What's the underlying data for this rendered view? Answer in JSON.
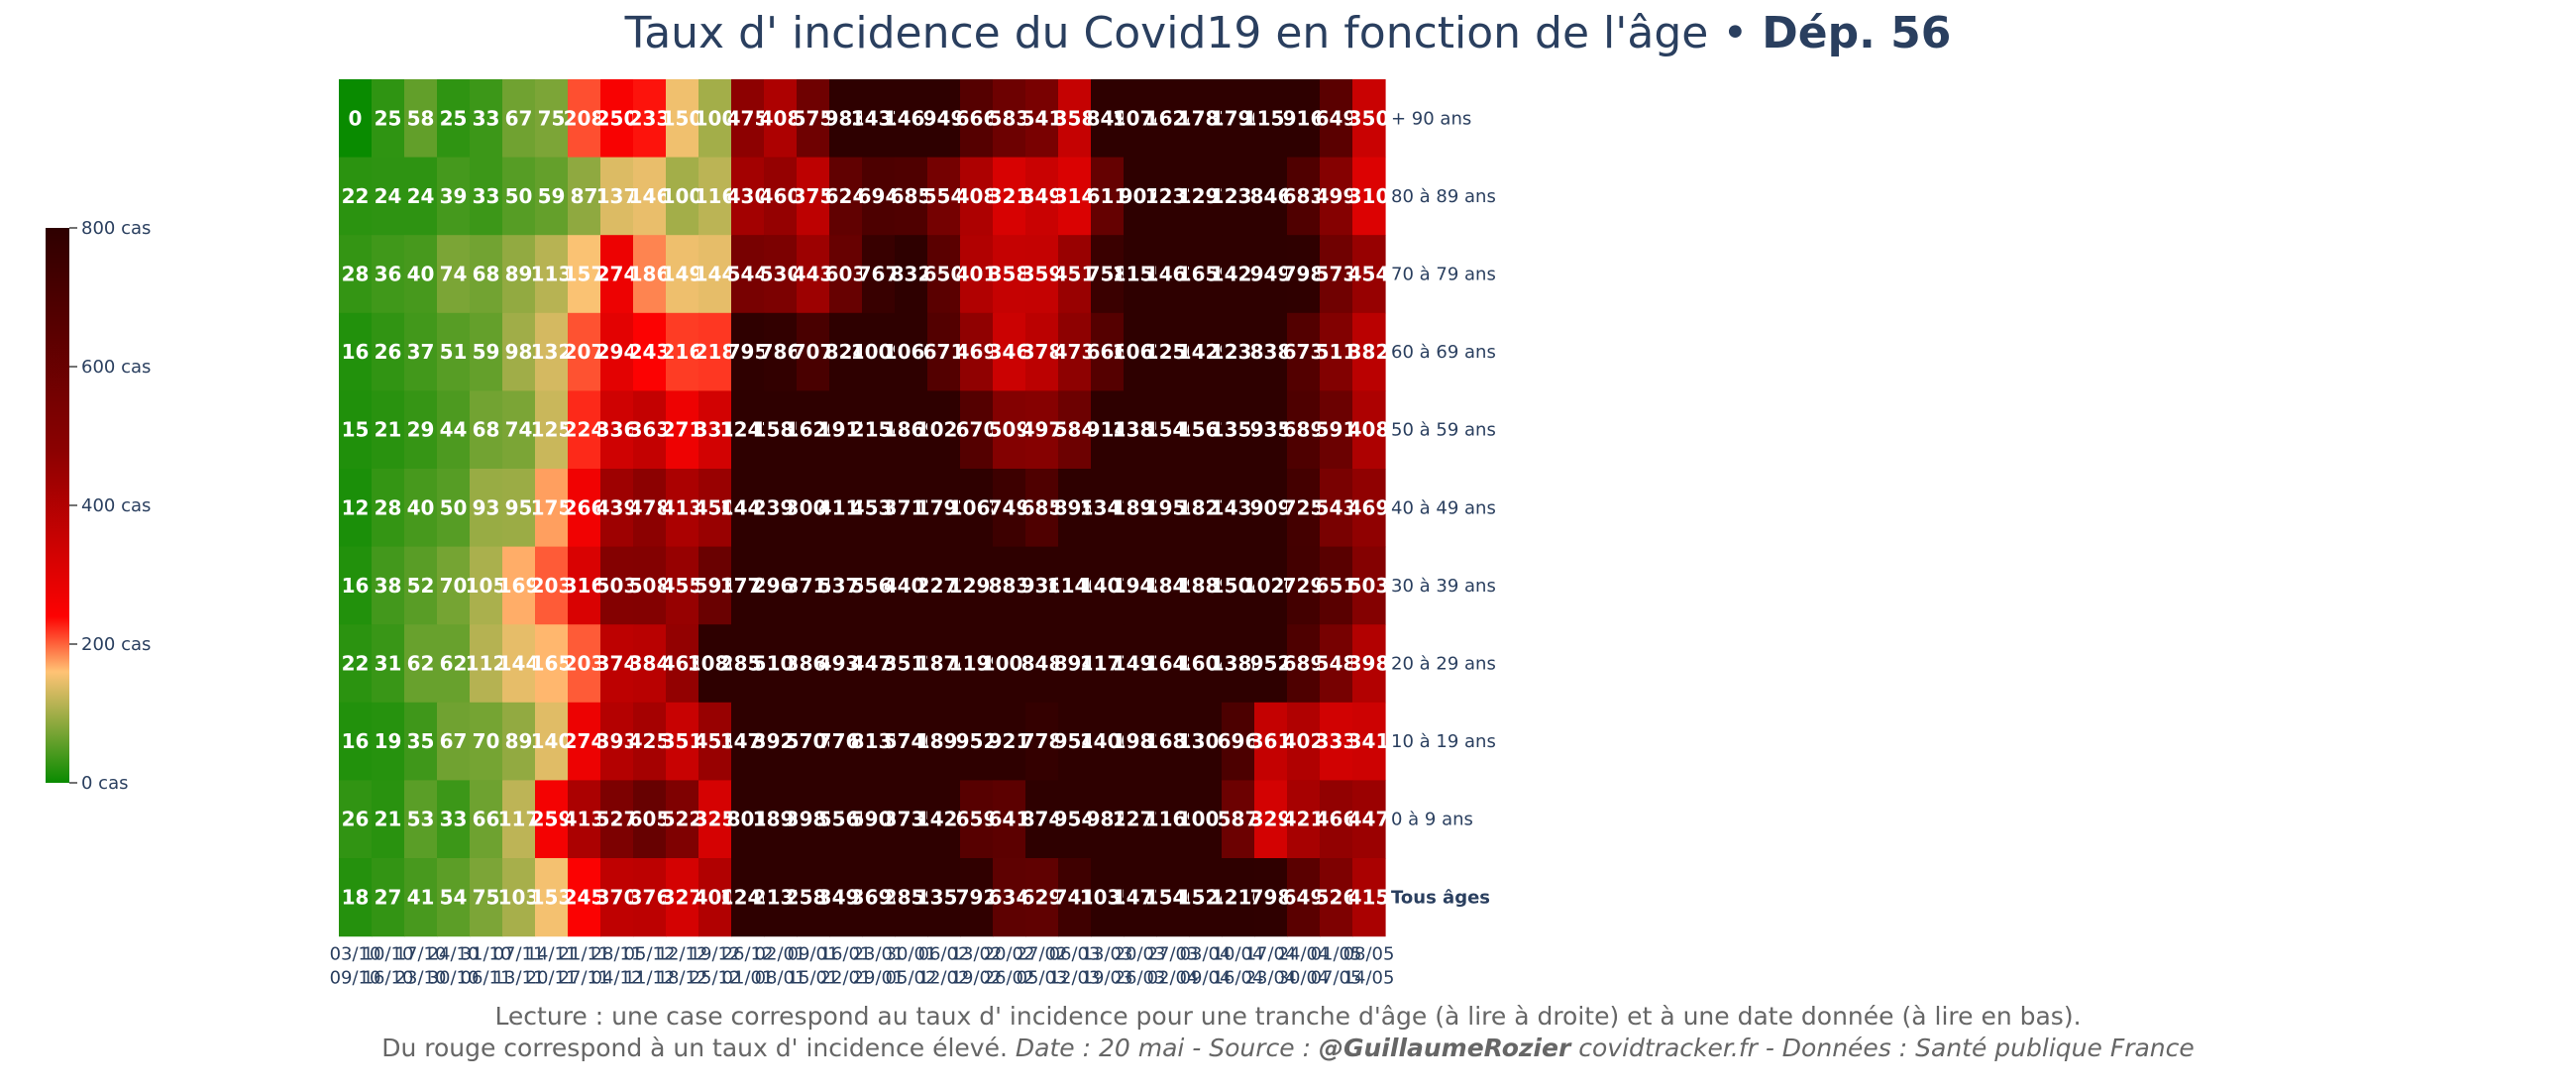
{
  "title": {
    "prefix": "Taux d' incidence du Covid19 en fonction de l'âge",
    "separator": " • ",
    "highlight": "Dép. 56"
  },
  "footer": {
    "line1": "Lecture : une case correspond au taux d' incidence pour une tranche d'âge (à lire à droite) et à une date donnée (à lire en bas).",
    "line2_plain": "Du rouge correspond à un taux d' incidence élevé.  ",
    "line2_italic": "Date : 20 mai - Source : ",
    "line2_handle": "@GuillaumeRozier",
    "line2_tail": " covidtracker.fr - Données : Santé publique France"
  },
  "chart_data": {
    "type": "heatmap",
    "title": "Taux d' incidence du Covid19 en fonction de l'âge • Dép. 56",
    "colorscale": [
      [
        0,
        "#098b00"
      ],
      [
        0.2,
        "#ffc375"
      ],
      [
        0.3,
        "#fd0202"
      ],
      [
        0.6,
        "#8b0101"
      ],
      [
        1,
        "#2e0000"
      ]
    ],
    "zmin": 0,
    "zmax": 800,
    "colorbar_ticks": [
      0,
      200,
      400,
      600,
      800
    ],
    "colorbar_tick_labels": [
      "0 cas",
      "200 cas",
      "400 cas",
      "600 cas",
      "800 cas"
    ],
    "x_labels": [
      [
        "03/10",
        "09/10"
      ],
      [
        "10/10",
        "16/10"
      ],
      [
        "17/10",
        "23/10"
      ],
      [
        "24/10",
        "30/10"
      ],
      [
        "31/10",
        "06/11"
      ],
      [
        "07/11",
        "13/11"
      ],
      [
        "14/11",
        "20/11"
      ],
      [
        "21/11",
        "27/11"
      ],
      [
        "28/11",
        "04/12"
      ],
      [
        "05/12",
        "11/12"
      ],
      [
        "12/12",
        "18/12"
      ],
      [
        "19/12",
        "25/12"
      ],
      [
        "26/12",
        "01/01"
      ],
      [
        "02/01",
        "08/01"
      ],
      [
        "09/01",
        "15/01"
      ],
      [
        "16/01",
        "22/01"
      ],
      [
        "23/01",
        "29/01"
      ],
      [
        "30/01",
        "05/02"
      ],
      [
        "06/02",
        "12/02"
      ],
      [
        "13/02",
        "19/02"
      ],
      [
        "20/02",
        "26/02"
      ],
      [
        "27/02",
        "05/03"
      ],
      [
        "06/03",
        "12/03"
      ],
      [
        "13/03",
        "19/03"
      ],
      [
        "20/03",
        "26/03"
      ],
      [
        "27/03",
        "02/04"
      ],
      [
        "03/04",
        "09/04"
      ],
      [
        "10/04",
        "16/04"
      ],
      [
        "17/04",
        "23/04"
      ],
      [
        "24/04",
        "30/04"
      ],
      [
        "01/05",
        "07/05"
      ],
      [
        "08/05",
        "14/05"
      ]
    ],
    "rows": [
      {
        "label": "+ 90 ans",
        "bold": false,
        "values": [
          0,
          25,
          58,
          25,
          33,
          67,
          75,
          208,
          250,
          233,
          150,
          100,
          475,
          408,
          575,
          983,
          1432,
          1465,
          949,
          666,
          583,
          541,
          358,
          849,
          1074,
          1624,
          1782,
          1790,
          1157,
          916,
          649,
          350
        ]
      },
      {
        "label": "80 à 89 ans",
        "bold": false,
        "values": [
          22,
          24,
          24,
          39,
          33,
          50,
          59,
          87,
          137,
          146,
          100,
          116,
          430,
          460,
          375,
          624,
          694,
          685,
          554,
          408,
          321,
          349,
          314,
          611,
          907,
          1232,
          1293,
          1235,
          846,
          683,
          499,
          310
        ]
      },
      {
        "label": "70 à 79 ans",
        "bold": false,
        "values": [
          28,
          36,
          40,
          74,
          68,
          89,
          113,
          157,
          274,
          186,
          149,
          144,
          544,
          530,
          443,
          603,
          767,
          832,
          650,
          401,
          358,
          359,
          451,
          758,
          1155,
          1462,
          1659,
          1423,
          949,
          798,
          573,
          454
        ]
      },
      {
        "label": "60 à 69 ans",
        "bold": false,
        "values": [
          16,
          26,
          37,
          51,
          59,
          98,
          132,
          207,
          294,
          243,
          216,
          218,
          795,
          786,
          707,
          824,
          1009,
          1063,
          671,
          469,
          346,
          378,
          473,
          666,
          1062,
          1250,
          1429,
          1236,
          838,
          673,
          511,
          382
        ]
      },
      {
        "label": "50 à 59 ans",
        "bold": false,
        "values": [
          15,
          21,
          29,
          44,
          68,
          74,
          125,
          224,
          336,
          363,
          271,
          331,
          1242,
          1585,
          1620,
          1917,
          2154,
          1869,
          1029,
          670,
          509,
          497,
          584,
          914,
          1385,
          1546,
          1561,
          1355,
          935,
          689,
          591,
          408
        ]
      },
      {
        "label": "40 à 49 ans",
        "bold": false,
        "values": [
          12,
          28,
          40,
          50,
          93,
          95,
          175,
          266,
          439,
          478,
          413,
          450,
          1443,
          2398,
          3000,
          4113,
          4535,
          3717,
          1792,
          1068,
          749,
          685,
          895,
          1341,
          1893,
          1950,
          1827,
          1433,
          909,
          725,
          543,
          469
        ]
      },
      {
        "label": "30 à 39 ans",
        "bold": false,
        "values": [
          16,
          38,
          52,
          70,
          105,
          169,
          203,
          316,
          503,
          508,
          455,
          593,
          1775,
          2969,
          3719,
          5378,
          5569,
          4405,
          2271,
          1299,
          883,
          936,
          1140,
          1403,
          1948,
          1849,
          1889,
          1504,
          1020,
          729,
          651,
          503
        ]
      },
      {
        "label": "20 à 29 ans",
        "bold": false,
        "values": [
          22,
          31,
          62,
          62,
          112,
          144,
          165,
          203,
          374,
          384,
          463,
          1084,
          2857,
          5109,
          3864,
          4935,
          4479,
          3513,
          1874,
          1199,
          1005,
          848,
          894,
          1177,
          1497,
          1648,
          1604,
          1384,
          952,
          689,
          548,
          398
        ]
      },
      {
        "label": "10 à 19 ans",
        "bold": false,
        "values": [
          16,
          19,
          35,
          67,
          70,
          89,
          140,
          274,
          393,
          425,
          351,
          453,
          1470,
          3924,
          5708,
          7760,
          8138,
          5740,
          1891,
          952,
          921,
          778,
          954,
          1400,
          1981,
          1682,
          1306,
          696,
          361,
          402,
          333,
          341
        ]
      },
      {
        "label": "0 à 9 ans",
        "bold": false,
        "values": [
          26,
          21,
          53,
          33,
          66,
          117,
          259,
          413,
          527,
          605,
          522,
          325,
          801,
          1896,
          3982,
          5569,
          5900,
          3735,
          1427,
          659,
          641,
          874,
          954,
          982,
          1271,
          1169,
          1002,
          587,
          329,
          421,
          466,
          447
        ]
      },
      {
        "label": "Tous âges",
        "bold": true,
        "values": [
          18,
          27,
          41,
          54,
          75,
          103,
          153,
          245,
          370,
          376,
          327,
          400,
          1246,
          2132,
          2588,
          3497,
          3698,
          2859,
          1351,
          792,
          634,
          629,
          741,
          1035,
          1473,
          1546,
          1524,
          1216,
          798,
          649,
          526,
          415
        ]
      }
    ]
  }
}
